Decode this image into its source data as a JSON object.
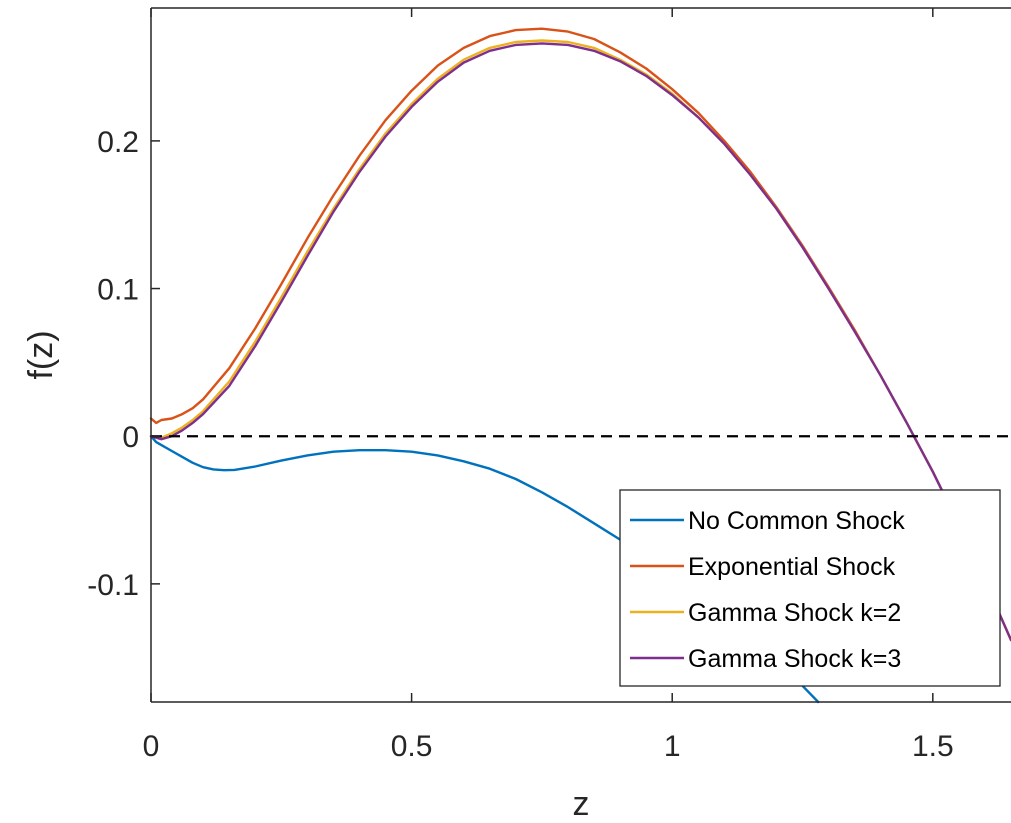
{
  "chart_data": {
    "type": "line",
    "title": "",
    "xlabel": "z",
    "ylabel": "f(z)",
    "xlim": [
      0,
      1.65
    ],
    "ylim": [
      -0.18,
      0.29
    ],
    "x_ticks": [
      0,
      0.5,
      1,
      1.5
    ],
    "x_tick_labels": [
      "0",
      "0.5",
      "1",
      "1.5"
    ],
    "y_ticks": [
      -0.1,
      0,
      0.1,
      0.2
    ],
    "y_tick_labels": [
      "-0.1",
      "0",
      "0.1",
      "0.2"
    ],
    "grid": false,
    "legend_position": "bottom-right",
    "reference_line": {
      "y": 0,
      "style": "dashed",
      "color": "#000000"
    },
    "series": [
      {
        "name": "No Common Shock",
        "color": "#0072BD",
        "x": [
          0,
          0.01,
          0.02,
          0.04,
          0.06,
          0.08,
          0.1,
          0.12,
          0.14,
          0.16,
          0.2,
          0.25,
          0.3,
          0.35,
          0.4,
          0.45,
          0.5,
          0.55,
          0.6,
          0.65,
          0.7,
          0.75,
          0.8,
          0.85,
          0.9,
          0.95,
          1.0,
          1.05,
          1.1,
          1.15,
          1.2,
          1.25,
          1.28
        ],
        "y": [
          0,
          -0.004,
          -0.006,
          -0.01,
          -0.014,
          -0.018,
          -0.021,
          -0.0225,
          -0.023,
          -0.0228,
          -0.0205,
          -0.0165,
          -0.013,
          -0.0105,
          -0.0095,
          -0.0095,
          -0.0105,
          -0.013,
          -0.017,
          -0.022,
          -0.029,
          -0.038,
          -0.048,
          -0.059,
          -0.07,
          -0.082,
          -0.094,
          -0.106,
          -0.12,
          -0.136,
          -0.153,
          -0.169,
          -0.18
        ]
      },
      {
        "name": "Exponential Shock",
        "color": "#D95319",
        "x": [
          0,
          0.01,
          0.02,
          0.04,
          0.06,
          0.08,
          0.1,
          0.15,
          0.2,
          0.25,
          0.3,
          0.35,
          0.4,
          0.45,
          0.5,
          0.55,
          0.6,
          0.65,
          0.7,
          0.75,
          0.8,
          0.85,
          0.9,
          0.95,
          1.0,
          1.05,
          1.1,
          1.15,
          1.2,
          1.25,
          1.3,
          1.35,
          1.4,
          1.45,
          1.5,
          1.55,
          1.6,
          1.65
        ],
        "y": [
          0.012,
          0.009,
          0.011,
          0.012,
          0.015,
          0.019,
          0.025,
          0.046,
          0.073,
          0.103,
          0.134,
          0.163,
          0.19,
          0.214,
          0.234,
          0.251,
          0.263,
          0.271,
          0.275,
          0.276,
          0.274,
          0.269,
          0.26,
          0.249,
          0.235,
          0.219,
          0.2,
          0.179,
          0.155,
          0.129,
          0.101,
          0.072,
          0.041,
          0.009,
          -0.024,
          -0.06,
          -0.098,
          -0.138
        ]
      },
      {
        "name": "Gamma Shock k=2",
        "color": "#EDB120",
        "x": [
          0,
          0.02,
          0.04,
          0.06,
          0.08,
          0.1,
          0.15,
          0.2,
          0.25,
          0.3,
          0.35,
          0.4,
          0.45,
          0.5,
          0.55,
          0.6,
          0.65,
          0.7,
          0.75,
          0.8,
          0.85,
          0.9,
          0.95,
          1.0,
          1.05,
          1.1,
          1.15,
          1.2,
          1.25,
          1.3,
          1.35,
          1.4,
          1.45,
          1.5,
          1.55,
          1.6,
          1.65
        ],
        "y": [
          0.0,
          -0.001,
          0.002,
          0.006,
          0.011,
          0.017,
          0.037,
          0.064,
          0.094,
          0.125,
          0.154,
          0.181,
          0.205,
          0.225,
          0.242,
          0.255,
          0.263,
          0.267,
          0.268,
          0.267,
          0.263,
          0.255,
          0.245,
          0.232,
          0.216,
          0.198,
          0.177,
          0.154,
          0.128,
          0.1,
          0.071,
          0.041,
          0.009,
          -0.024,
          -0.06,
          -0.098,
          -0.138
        ]
      },
      {
        "name": "Gamma Shock k=3",
        "color": "#7E2F8E",
        "x": [
          0,
          0.02,
          0.04,
          0.06,
          0.08,
          0.1,
          0.15,
          0.2,
          0.25,
          0.3,
          0.35,
          0.4,
          0.45,
          0.5,
          0.55,
          0.6,
          0.65,
          0.7,
          0.75,
          0.8,
          0.85,
          0.9,
          0.95,
          1.0,
          1.05,
          1.1,
          1.15,
          1.2,
          1.25,
          1.3,
          1.35,
          1.4,
          1.45,
          1.5,
          1.55,
          1.6,
          1.65
        ],
        "y": [
          0.0,
          -0.002,
          0.0,
          0.004,
          0.009,
          0.015,
          0.034,
          0.061,
          0.091,
          0.122,
          0.152,
          0.179,
          0.203,
          0.223,
          0.24,
          0.253,
          0.261,
          0.265,
          0.266,
          0.265,
          0.261,
          0.254,
          0.244,
          0.231,
          0.216,
          0.198,
          0.177,
          0.154,
          0.128,
          0.1,
          0.071,
          0.041,
          0.009,
          -0.024,
          -0.06,
          -0.098,
          -0.138
        ]
      }
    ]
  }
}
